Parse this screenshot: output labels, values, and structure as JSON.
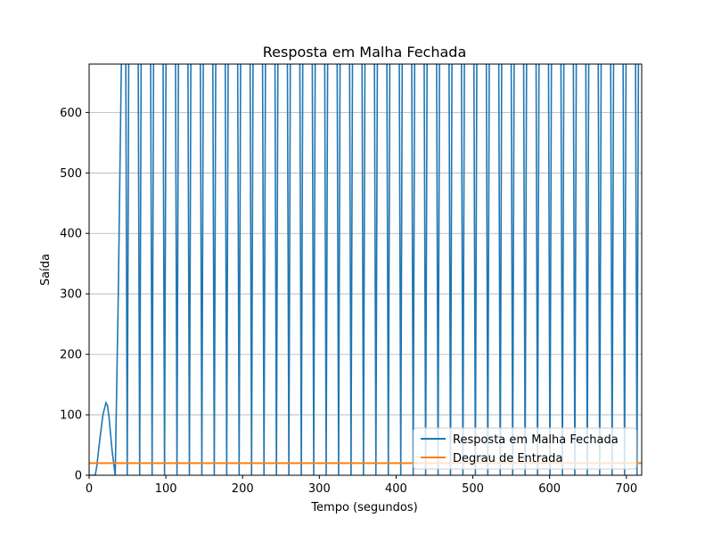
{
  "chart_data": {
    "type": "line",
    "title": "Resposta em Malha Fechada",
    "xlabel": "Tempo (segundos)",
    "ylabel": "Saída",
    "xlim": [
      0,
      720
    ],
    "ylim": [
      0,
      680
    ],
    "xticks": [
      0,
      100,
      200,
      300,
      400,
      500,
      600,
      700
    ],
    "yticks": [
      0,
      100,
      200,
      300,
      400,
      500,
      600
    ],
    "grid": "y-major",
    "legend_position": "lower-right",
    "series": [
      {
        "name": "Resposta em Malha Fechada",
        "color": "#1f77b4",
        "description_points": [
          [
            0,
            0
          ],
          [
            8,
            0
          ],
          [
            10,
            15
          ],
          [
            14,
            60
          ],
          [
            18,
            100
          ],
          [
            22,
            120
          ],
          [
            24,
            115
          ],
          [
            26,
            95
          ],
          [
            30,
            40
          ],
          [
            34,
            0
          ],
          [
            38,
            300
          ],
          [
            42,
            680
          ]
        ],
        "oscillation": {
          "start": 44,
          "end": 720,
          "period": 16.2,
          "min": 0,
          "max": 680
        }
      },
      {
        "name": "Degrau de Entrada",
        "color": "#ff7f0e",
        "x": [
          0,
          720
        ],
        "y": [
          20,
          20
        ]
      }
    ]
  }
}
